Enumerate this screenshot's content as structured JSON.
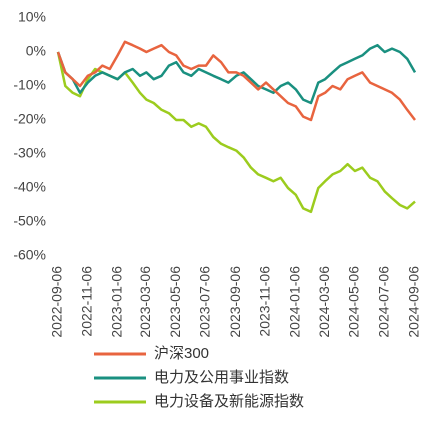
{
  "chart_data": {
    "type": "line",
    "x": [
      "2022-09-06",
      "2022-09-21",
      "2022-10-06",
      "2022-10-21",
      "2022-11-06",
      "2022-11-21",
      "2022-12-06",
      "2022-12-21",
      "2023-01-06",
      "2023-01-21",
      "2023-02-06",
      "2023-02-21",
      "2023-03-06",
      "2023-03-21",
      "2023-04-06",
      "2023-04-21",
      "2023-05-06",
      "2023-05-21",
      "2023-06-06",
      "2023-06-21",
      "2023-07-06",
      "2023-07-21",
      "2023-08-06",
      "2023-08-21",
      "2023-09-06",
      "2023-09-21",
      "2023-10-06",
      "2023-10-21",
      "2023-11-06",
      "2023-11-21",
      "2023-12-06",
      "2023-12-21",
      "2024-01-06",
      "2024-01-21",
      "2024-02-06",
      "2024-02-21",
      "2024-03-06",
      "2024-03-21",
      "2024-04-06",
      "2024-04-21",
      "2024-05-06",
      "2024-05-21",
      "2024-06-06",
      "2024-06-21",
      "2024-07-06",
      "2024-07-21",
      "2024-08-06",
      "2024-08-21",
      "2024-09-06"
    ],
    "series": [
      {
        "name": "沪深300",
        "color": "#e8643f",
        "values": [
          0,
          -6,
          -8,
          -10,
          -7,
          -6,
          -4,
          -5,
          -1,
          3,
          2,
          1,
          0,
          1,
          2,
          0,
          -1,
          -4,
          -5,
          -4,
          -4,
          -1,
          -3,
          -6,
          -6,
          -7,
          -9,
          -11,
          -9,
          -11,
          -13,
          -15,
          -16,
          -19,
          -20,
          -13,
          -12,
          -10,
          -11,
          -8,
          -7,
          -6,
          -9,
          -10,
          -11,
          -12,
          -14,
          -17,
          -20
        ]
      },
      {
        "name": "电力及公用事业指数",
        "color": "#1a9080",
        "values": [
          0,
          -6,
          -8,
          -12,
          -9,
          -7,
          -6,
          -7,
          -8,
          -6,
          -5,
          -7,
          -6,
          -8,
          -7,
          -4,
          -3,
          -6,
          -7,
          -5,
          -6,
          -7,
          -8,
          -9,
          -7,
          -6,
          -8,
          -10,
          -11,
          -12,
          -10,
          -9,
          -11,
          -14,
          -15,
          -9,
          -8,
          -6,
          -4,
          -3,
          -2,
          -1,
          1,
          2,
          0,
          1,
          0,
          -2,
          -6
        ]
      },
      {
        "name": "电力设备及新能源指数",
        "color": "#9ccc1e",
        "values": [
          0,
          -10,
          -12,
          -13,
          -8,
          -5,
          -6,
          -7,
          -8,
          -6,
          -9,
          -12,
          -14,
          -15,
          -17,
          -18,
          -20,
          -20,
          -22,
          -21,
          -22,
          -25,
          -27,
          -28,
          -29,
          -31,
          -34,
          -36,
          -37,
          -38,
          -37,
          -40,
          -42,
          -46,
          -47,
          -40,
          -38,
          -36,
          -35,
          -33,
          -35,
          -34,
          -37,
          -38,
          -41,
          -43,
          -45,
          -46,
          -44
        ]
      }
    ],
    "xlim": [
      "2022-09-06",
      "2024-09-06"
    ],
    "xticks": [
      "2022-09-06",
      "2022-11-06",
      "2023-01-06",
      "2023-03-06",
      "2023-05-06",
      "2023-07-06",
      "2023-09-06",
      "2023-11-06",
      "2024-01-06",
      "2024-03-06",
      "2024-05-06",
      "2024-07-06",
      "2024-09-06"
    ],
    "ylim": [
      -60,
      10
    ],
    "yticks": [
      {
        "value": 10,
        "label": "10%"
      },
      {
        "value": 0,
        "label": "0%"
      },
      {
        "value": -10,
        "label": "-10%"
      },
      {
        "value": -20,
        "label": "-20%"
      },
      {
        "value": -30,
        "label": "-30%"
      },
      {
        "value": -40,
        "label": "-40%"
      },
      {
        "value": -50,
        "label": "-50%"
      },
      {
        "value": -60,
        "label": "-60%"
      }
    ],
    "legend": "bottom"
  }
}
